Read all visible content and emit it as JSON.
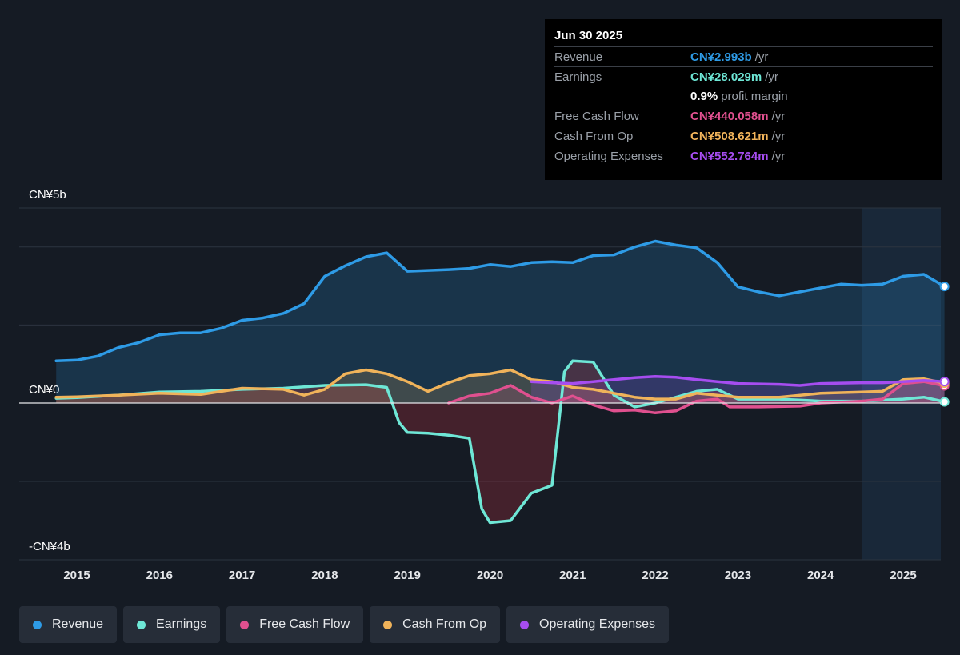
{
  "tooltip": {
    "date": "Jun 30 2025",
    "rows": [
      {
        "label": "Revenue",
        "value": "CN¥2.993b",
        "unit": "/yr",
        "color": "#2e9be6"
      },
      {
        "label": "Earnings",
        "value": "CN¥28.029m",
        "unit": "/yr",
        "color": "#6ee7d6"
      },
      {
        "label": "",
        "value": "0.9%",
        "unit": "profit margin",
        "color": "#ffffff"
      },
      {
        "label": "Free Cash Flow",
        "value": "CN¥440.058m",
        "unit": "/yr",
        "color": "#e0508f"
      },
      {
        "label": "Cash From Op",
        "value": "CN¥508.621m",
        "unit": "/yr",
        "color": "#f0b35a"
      },
      {
        "label": "Operating Expenses",
        "value": "CN¥552.764m",
        "unit": "/yr",
        "color": "#a64df0"
      }
    ]
  },
  "axis": {
    "y_top": "CN¥5b",
    "y_zero": "CN¥0",
    "y_bottom": "-CN¥4b"
  },
  "legend": [
    {
      "label": "Revenue",
      "color": "#2e9be6"
    },
    {
      "label": "Earnings",
      "color": "#6ee7d6"
    },
    {
      "label": "Free Cash Flow",
      "color": "#e0508f"
    },
    {
      "label": "Cash From Op",
      "color": "#f0b35a"
    },
    {
      "label": "Operating Expenses",
      "color": "#a64df0"
    }
  ],
  "chart_data": {
    "type": "area",
    "ylim": [
      -4,
      5
    ],
    "unit": "CN¥ billions",
    "xticks": [
      "2015",
      "2016",
      "2017",
      "2018",
      "2019",
      "2020",
      "2021",
      "2022",
      "2023",
      "2024",
      "2025"
    ],
    "xrange": [
      2014.75,
      2025.5
    ],
    "forecast_shade_start": 2024.5,
    "series": [
      {
        "name": "Revenue",
        "color": "#2e9be6",
        "points": [
          [
            2014.75,
            1.08
          ],
          [
            2015.0,
            1.1
          ],
          [
            2015.25,
            1.2
          ],
          [
            2015.5,
            1.42
          ],
          [
            2015.75,
            1.55
          ],
          [
            2016.0,
            1.75
          ],
          [
            2016.25,
            1.8
          ],
          [
            2016.5,
            1.8
          ],
          [
            2016.75,
            1.92
          ],
          [
            2017.0,
            2.12
          ],
          [
            2017.25,
            2.18
          ],
          [
            2017.5,
            2.3
          ],
          [
            2017.75,
            2.55
          ],
          [
            2018.0,
            3.25
          ],
          [
            2018.25,
            3.52
          ],
          [
            2018.5,
            3.75
          ],
          [
            2018.75,
            3.85
          ],
          [
            2019.0,
            3.38
          ],
          [
            2019.25,
            3.4
          ],
          [
            2019.5,
            3.42
          ],
          [
            2019.75,
            3.45
          ],
          [
            2020.0,
            3.55
          ],
          [
            2020.25,
            3.5
          ],
          [
            2020.5,
            3.6
          ],
          [
            2020.75,
            3.62
          ],
          [
            2021.0,
            3.6
          ],
          [
            2021.25,
            3.78
          ],
          [
            2021.5,
            3.8
          ],
          [
            2021.75,
            4.0
          ],
          [
            2022.0,
            4.15
          ],
          [
            2022.25,
            4.05
          ],
          [
            2022.5,
            3.98
          ],
          [
            2022.75,
            3.6
          ],
          [
            2023.0,
            2.98
          ],
          [
            2023.25,
            2.85
          ],
          [
            2023.5,
            2.75
          ],
          [
            2023.75,
            2.85
          ],
          [
            2024.0,
            2.95
          ],
          [
            2024.25,
            3.05
          ],
          [
            2024.5,
            3.02
          ],
          [
            2024.75,
            3.05
          ],
          [
            2025.0,
            3.25
          ],
          [
            2025.25,
            3.3
          ],
          [
            2025.5,
            2.99
          ]
        ]
      },
      {
        "name": "Earnings",
        "color": "#6ee7d6",
        "points": [
          [
            2014.75,
            0.12
          ],
          [
            2015.0,
            0.14
          ],
          [
            2015.5,
            0.2
          ],
          [
            2016.0,
            0.28
          ],
          [
            2016.5,
            0.3
          ],
          [
            2017.0,
            0.35
          ],
          [
            2017.5,
            0.38
          ],
          [
            2018.0,
            0.45
          ],
          [
            2018.5,
            0.47
          ],
          [
            2018.75,
            0.4
          ],
          [
            2018.9,
            -0.5
          ],
          [
            2019.0,
            -0.75
          ],
          [
            2019.25,
            -0.77
          ],
          [
            2019.5,
            -0.82
          ],
          [
            2019.75,
            -0.9
          ],
          [
            2019.9,
            -2.7
          ],
          [
            2020.0,
            -3.05
          ],
          [
            2020.25,
            -3.0
          ],
          [
            2020.5,
            -2.3
          ],
          [
            2020.75,
            -2.1
          ],
          [
            2020.9,
            0.8
          ],
          [
            2021.0,
            1.08
          ],
          [
            2021.25,
            1.05
          ],
          [
            2021.5,
            0.2
          ],
          [
            2021.75,
            -0.1
          ],
          [
            2022.0,
            0.0
          ],
          [
            2022.5,
            0.3
          ],
          [
            2022.75,
            0.35
          ],
          [
            2023.0,
            0.1
          ],
          [
            2023.5,
            0.1
          ],
          [
            2024.0,
            0.05
          ],
          [
            2024.5,
            0.05
          ],
          [
            2025.0,
            0.1
          ],
          [
            2025.25,
            0.15
          ],
          [
            2025.5,
            0.03
          ]
        ]
      },
      {
        "name": "Free Cash Flow",
        "color": "#e0508f",
        "points": [
          [
            2019.5,
            0.0
          ],
          [
            2019.75,
            0.18
          ],
          [
            2020.0,
            0.25
          ],
          [
            2020.25,
            0.45
          ],
          [
            2020.5,
            0.15
          ],
          [
            2020.75,
            0.0
          ],
          [
            2021.0,
            0.18
          ],
          [
            2021.25,
            -0.05
          ],
          [
            2021.5,
            -0.2
          ],
          [
            2021.75,
            -0.18
          ],
          [
            2022.0,
            -0.25
          ],
          [
            2022.25,
            -0.2
          ],
          [
            2022.5,
            0.05
          ],
          [
            2022.75,
            0.1
          ],
          [
            2022.9,
            -0.1
          ],
          [
            2023.25,
            -0.1
          ],
          [
            2023.75,
            -0.08
          ],
          [
            2024.0,
            0.0
          ],
          [
            2024.5,
            0.05
          ],
          [
            2024.75,
            0.1
          ],
          [
            2025.0,
            0.5
          ],
          [
            2025.25,
            0.55
          ],
          [
            2025.5,
            0.44
          ]
        ]
      },
      {
        "name": "Cash From Op",
        "color": "#f0b35a",
        "points": [
          [
            2014.75,
            0.15
          ],
          [
            2015.0,
            0.16
          ],
          [
            2015.5,
            0.2
          ],
          [
            2016.0,
            0.25
          ],
          [
            2016.5,
            0.22
          ],
          [
            2016.75,
            0.3
          ],
          [
            2017.0,
            0.38
          ],
          [
            2017.5,
            0.35
          ],
          [
            2017.75,
            0.2
          ],
          [
            2018.0,
            0.35
          ],
          [
            2018.25,
            0.75
          ],
          [
            2018.5,
            0.85
          ],
          [
            2018.75,
            0.75
          ],
          [
            2019.0,
            0.55
          ],
          [
            2019.25,
            0.3
          ],
          [
            2019.5,
            0.52
          ],
          [
            2019.75,
            0.7
          ],
          [
            2020.0,
            0.75
          ],
          [
            2020.25,
            0.85
          ],
          [
            2020.5,
            0.6
          ],
          [
            2020.75,
            0.55
          ],
          [
            2021.0,
            0.4
          ],
          [
            2021.25,
            0.35
          ],
          [
            2021.5,
            0.25
          ],
          [
            2021.75,
            0.15
          ],
          [
            2022.0,
            0.1
          ],
          [
            2022.25,
            0.1
          ],
          [
            2022.5,
            0.25
          ],
          [
            2022.75,
            0.2
          ],
          [
            2023.0,
            0.15
          ],
          [
            2023.5,
            0.15
          ],
          [
            2024.0,
            0.25
          ],
          [
            2024.5,
            0.28
          ],
          [
            2024.75,
            0.3
          ],
          [
            2025.0,
            0.6
          ],
          [
            2025.25,
            0.62
          ],
          [
            2025.5,
            0.51
          ]
        ]
      },
      {
        "name": "Operating Expenses",
        "color": "#a64df0",
        "points": [
          [
            2020.5,
            0.55
          ],
          [
            2020.75,
            0.52
          ],
          [
            2021.0,
            0.5
          ],
          [
            2021.25,
            0.55
          ],
          [
            2021.5,
            0.6
          ],
          [
            2021.75,
            0.65
          ],
          [
            2022.0,
            0.68
          ],
          [
            2022.25,
            0.66
          ],
          [
            2022.5,
            0.6
          ],
          [
            2022.75,
            0.55
          ],
          [
            2023.0,
            0.5
          ],
          [
            2023.5,
            0.48
          ],
          [
            2023.75,
            0.45
          ],
          [
            2024.0,
            0.5
          ],
          [
            2024.5,
            0.52
          ],
          [
            2024.75,
            0.52
          ],
          [
            2025.0,
            0.55
          ],
          [
            2025.25,
            0.58
          ],
          [
            2025.5,
            0.55
          ]
        ]
      }
    ]
  }
}
